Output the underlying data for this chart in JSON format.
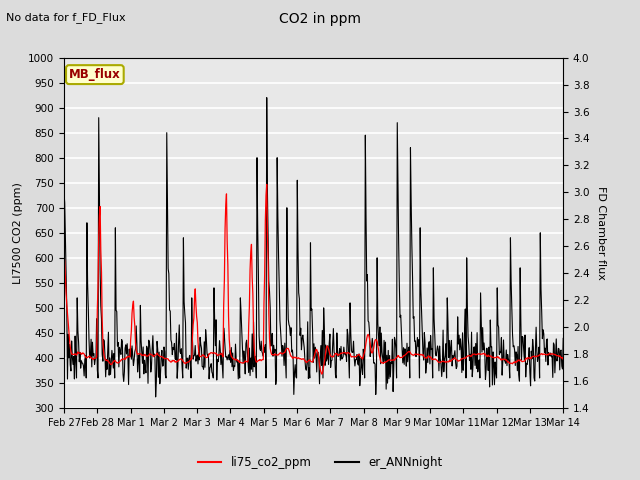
{
  "title": "CO2 in ppm",
  "subtitle": "No data for f_FD_Flux",
  "ylabel_left": "LI7500 CO2 (ppm)",
  "ylabel_right": "FD Chamber flux",
  "ylim_left": [
    300,
    1000
  ],
  "ylim_right": [
    1.4,
    4.0
  ],
  "legend_labels": [
    "li75_co2_ppm",
    "er_ANNnight"
  ],
  "legend_colors": [
    "red",
    "black"
  ],
  "mb_flux_label": "MB_flux",
  "mb_flux_facecolor": "#FFFFCC",
  "mb_flux_edgecolor": "#AAAA00",
  "mb_flux_textcolor": "#990000",
  "line_red_color": "red",
  "line_black_color": "black",
  "bg_color": "#DCDCDC",
  "plot_bg_color": "#E8E8E8",
  "grid_color": "white",
  "x_tick_labels": [
    "Feb 27",
    "Feb 28",
    "Mar 1",
    "Mar 2",
    "Mar 3",
    "Mar 4",
    "Mar 5",
    "Mar 6",
    "Mar 7",
    "Mar 8",
    "Mar 9",
    "Mar 10",
    "Mar 11",
    "Mar 12",
    "Mar 13",
    "Mar 14"
  ],
  "x_tick_positions": [
    0,
    1,
    2,
    3,
    4,
    5,
    6,
    7,
    8,
    9,
    10,
    11,
    12,
    13,
    14,
    15
  ],
  "yticks_left": [
    300,
    350,
    400,
    450,
    500,
    550,
    600,
    650,
    700,
    750,
    800,
    850,
    900,
    950,
    1000
  ],
  "yticks_right": [
    1.4,
    1.6,
    1.8,
    2.0,
    2.2,
    2.4,
    2.6,
    2.8,
    3.0,
    3.2,
    3.4,
    3.6,
    3.8,
    4.0
  ]
}
